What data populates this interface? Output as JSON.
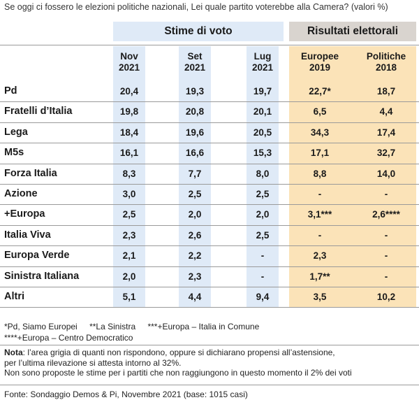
{
  "question": "Se oggi ci fossero le elezioni politiche nazionali, Lei quale partito voterebbe alla Camera? (valori %)",
  "groups": {
    "estimates": "Stime di voto",
    "results": "Risultati elettorali"
  },
  "columns": [
    {
      "line1": "Nov",
      "line2": "2021"
    },
    {
      "line1": "Set",
      "line2": "2021"
    },
    {
      "line1": "Lug",
      "line2": "2021"
    },
    {
      "line1": "Europee",
      "line2": "2019"
    },
    {
      "line1": "Politiche",
      "line2": "2018"
    }
  ],
  "chart_data": {
    "type": "table",
    "title": "Se oggi ci fossero le elezioni politiche nazionali, Lei quale partito voterebbe alla Camera? (valori %)",
    "columns": [
      "Nov 2021",
      "Set 2021",
      "Lug 2021",
      "Europee 2019",
      "Politiche 2018"
    ],
    "rows": [
      {
        "party": "Pd",
        "values": [
          "20,4",
          "19,3",
          "19,7",
          "22,7*",
          "18,7"
        ]
      },
      {
        "party": "Fratelli d’Italia",
        "values": [
          "19,8",
          "20,8",
          "20,1",
          "6,5",
          "4,4"
        ]
      },
      {
        "party": "Lega",
        "values": [
          "18,4",
          "19,6",
          "20,5",
          "34,3",
          "17,4"
        ]
      },
      {
        "party": "M5s",
        "values": [
          "16,1",
          "16,6",
          "15,3",
          "17,1",
          "32,7"
        ]
      },
      {
        "party": "Forza Italia",
        "values": [
          "8,3",
          "7,7",
          "8,0",
          "8,8",
          "14,0"
        ]
      },
      {
        "party": "Azione",
        "values": [
          "3,0",
          "2,5",
          "2,5",
          "-",
          "-"
        ]
      },
      {
        "party": "+Europa",
        "values": [
          "2,5",
          "2,0",
          "2,0",
          "3,1***",
          "2,6****"
        ]
      },
      {
        "party": "Italia Viva",
        "values": [
          "2,3",
          "2,6",
          "2,5",
          "-",
          "-"
        ]
      },
      {
        "party": "Europa Verde",
        "values": [
          "2,1",
          "2,2",
          "-",
          "2,3",
          "-"
        ]
      },
      {
        "party": "Sinistra Italiana",
        "values": [
          "2,0",
          "2,3",
          "-",
          "1,7**",
          "-"
        ]
      },
      {
        "party": "Altri",
        "values": [
          "5,1",
          "4,4",
          "9,4",
          "3,5",
          "10,2"
        ]
      }
    ]
  },
  "legend": {
    "line1": [
      "*Pd, Siamo Europei",
      "**La Sinistra",
      "***+Europa – Italia in Comune"
    ],
    "line2": [
      "****+Europa – Centro Democratico"
    ]
  },
  "notes": {
    "label": "Nota",
    "line1": ": l’area grigia di quanti non rispondono, oppure si dichiarano propensi all’astensione,",
    "line2": "per l’ultima rilevazione si attesta intorno al 32%.",
    "line3": "Non sono proposte le stime per i partiti che non raggiungono in questo momento il 2% dei voti"
  },
  "source": "Fonte: Sondaggio Demos & Pi, Novembre 2021 (base: 1015 casi)",
  "colors": {
    "estimate_band": "#dfeaf7",
    "result_band": "#fbe3b8",
    "results_header": "#d9d4cf"
  }
}
